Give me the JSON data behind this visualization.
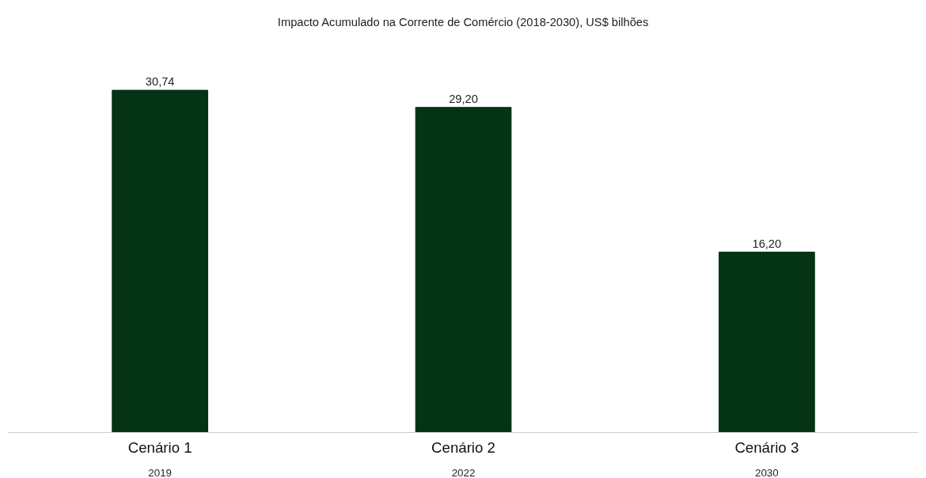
{
  "chart_data": {
    "type": "bar",
    "title": "Impacto Acumulado na Corrente de Comércio (2018-2030), US$ bilhões",
    "categories": [
      "Cenário 1",
      "Cenário 2",
      "Cenário 3"
    ],
    "values": [
      30.74,
      29.2,
      16.2
    ],
    "color": "#053315",
    "value_labels": [
      "30,74",
      "29,20",
      "16,20"
    ],
    "annotations": [
      "2019",
      "2022",
      "2030"
    ],
    "tick_labels": "x",
    "grid": false
  }
}
